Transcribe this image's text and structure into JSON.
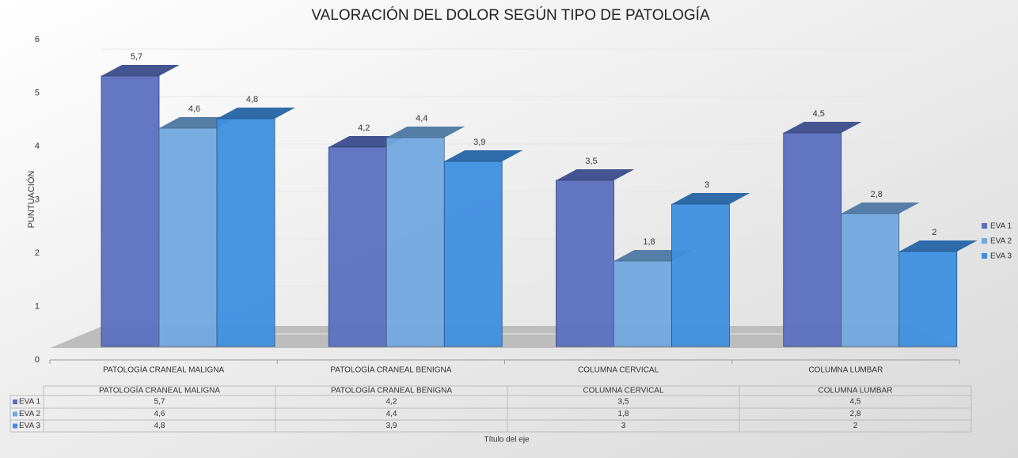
{
  "chart_data": {
    "type": "bar",
    "title": "VALORACIÓN DEL DOLOR SEGÚN TIPO DE PATOLOGÍA",
    "y_label": "PUNTUACIÓN",
    "x_label": "Título del eje",
    "categories": [
      "PATOLOGÍA CRANEAL MALIGNA",
      "PATOLOGÍA CRANEAL BENIGNA",
      "COLUMNA CERVICAL",
      "COLUMNA LUMBAR"
    ],
    "series": [
      {
        "name": "EVA 1",
        "color": "#5b70c0",
        "values": [
          5.7,
          4.2,
          3.5,
          4.5
        ],
        "value_labels": [
          "5,7",
          "4,2",
          "3,5",
          "4,5"
        ]
      },
      {
        "name": "EVA 2",
        "color": "#72a9df",
        "values": [
          4.6,
          4.4,
          1.8,
          2.8
        ],
        "value_labels": [
          "4,6",
          "4,4",
          "1,8",
          "2,8"
        ]
      },
      {
        "name": "EVA 3",
        "color": "#3e8fe0",
        "values": [
          4.8,
          3.9,
          3,
          2
        ],
        "value_labels": [
          "4,8",
          "3,9",
          "3",
          "2"
        ]
      }
    ],
    "ylim": [
      0,
      6
    ],
    "yticks": [
      0,
      1,
      2,
      3,
      4,
      5,
      6
    ],
    "grid": true,
    "legend": "right"
  }
}
